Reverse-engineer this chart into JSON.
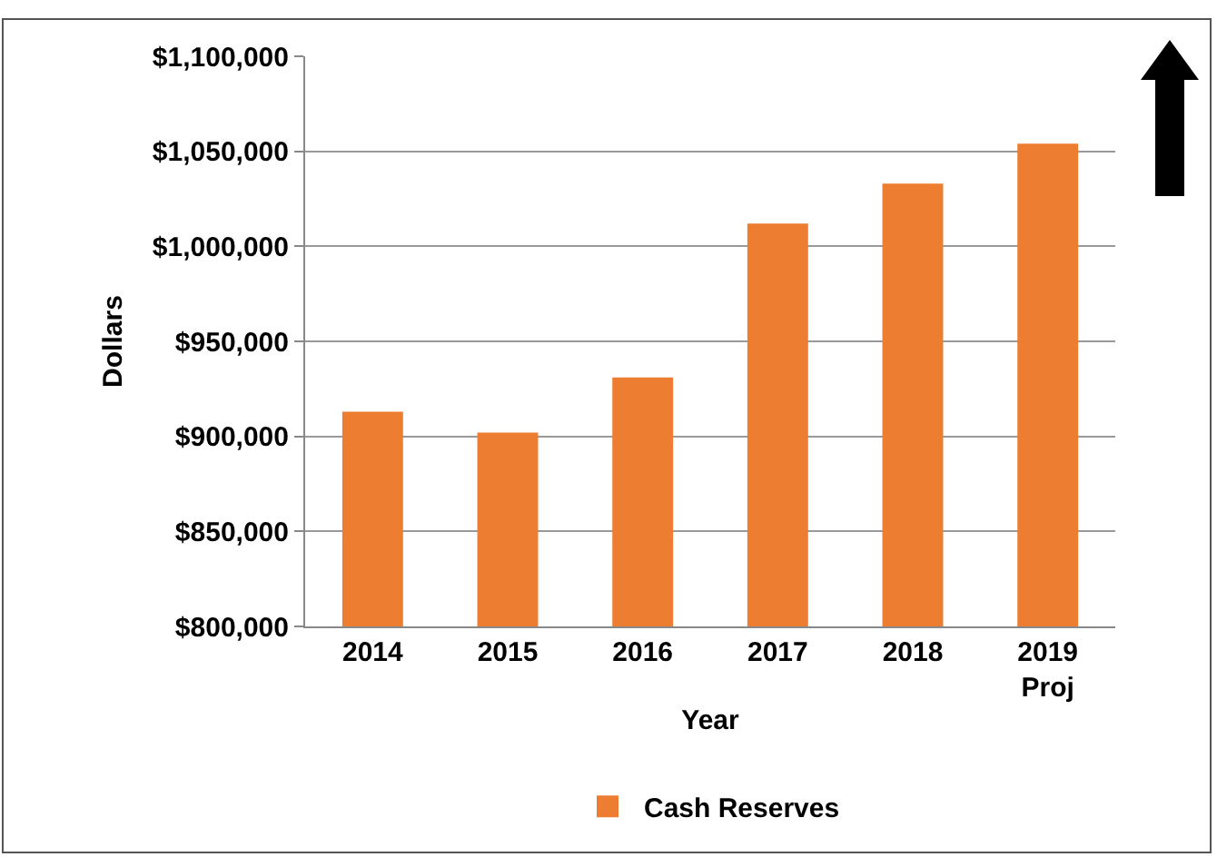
{
  "chart_data": {
    "type": "bar",
    "xlabel": "Year",
    "ylabel": "Dollars",
    "categories": [
      "2014",
      "2015",
      "2016",
      "2017",
      "2018",
      "2019\nProj"
    ],
    "series": [
      {
        "name": "Cash Reserves",
        "color": "#ed7d31",
        "values": [
          913000,
          902000,
          931000,
          1012000,
          1033000,
          1054000
        ]
      }
    ],
    "ylim": [
      800000,
      1100000
    ],
    "yticks": [
      {
        "value": 800000,
        "label": "$800,000"
      },
      {
        "value": 850000,
        "label": "$850,000"
      },
      {
        "value": 900000,
        "label": "$900,000"
      },
      {
        "value": 950000,
        "label": "$950,000"
      },
      {
        "value": 1000000,
        "label": "$1,000,000"
      },
      {
        "value": 1050000,
        "label": "$1,050,000"
      },
      {
        "value": 1100000,
        "label": "$1,100,000"
      }
    ],
    "grid": "y",
    "legend": "bottom"
  }
}
